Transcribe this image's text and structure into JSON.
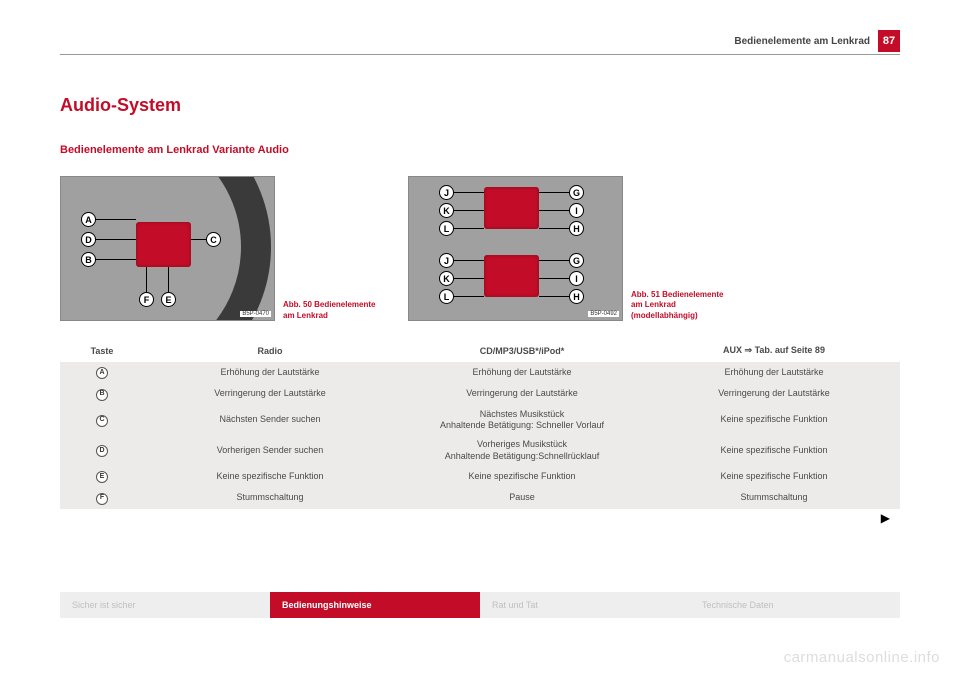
{
  "header": {
    "section_title": "Bedienelemente am Lenkrad",
    "page_number": "87"
  },
  "title": "Audio-System",
  "subtitle": "Bedienelemente am Lenkrad Variante Audio",
  "figures": {
    "left": {
      "code": "B5P-0470",
      "caption": "Abb. 50  Bedienelemente am Lenkrad",
      "bubbles": [
        "A",
        "B",
        "C",
        "D",
        "E",
        "F"
      ]
    },
    "right": {
      "code": "B5P-0492",
      "caption": "Abb. 51  Bedienelemente am Lenkrad (modellabhängig)",
      "bubbles_top": [
        "J",
        "K",
        "L",
        "G",
        "I",
        "H"
      ],
      "bubbles_bot": [
        "J",
        "K",
        "L",
        "G",
        "I",
        "H"
      ]
    }
  },
  "table": {
    "columns": {
      "taste": "Taste",
      "radio": "Radio",
      "cd": "CD/MP3/USB*/iPod*",
      "aux": "AUX ⇒ Tab. auf Seite 89"
    },
    "rows": [
      {
        "key": "A",
        "radio": "Erhöhung der Lautstärke",
        "cd": "Erhöhung der Lautstärke",
        "aux": "Erhöhung der Lautstärke"
      },
      {
        "key": "B",
        "radio": "Verringerung der Lautstärke",
        "cd": "Verringerung der Lautstärke",
        "aux": "Verringerung der Lautstärke"
      },
      {
        "key": "C",
        "radio": "Nächsten Sender suchen",
        "cd": "Nächstes Musikstück\nAnhaltende Betätigung: Schneller Vorlauf",
        "aux": "Keine spezifische Funktion"
      },
      {
        "key": "D",
        "radio": "Vorherigen Sender suchen",
        "cd": "Vorheriges Musikstück\nAnhaltende Betätigung:Schnellrücklauf",
        "aux": "Keine spezifische Funktion"
      },
      {
        "key": "E",
        "radio": "Keine spezifische Funktion",
        "cd": "Keine spezifische Funktion",
        "aux": "Keine spezifische Funktion"
      },
      {
        "key": "F",
        "radio": "Stummschaltung",
        "cd": "Pause",
        "aux": "Stummschaltung"
      }
    ]
  },
  "footer": {
    "tabs": [
      "Sicher ist sicher",
      "Bedienungshinweise",
      "Rat und Tat",
      "Technische Daten"
    ],
    "active_index": 1
  },
  "watermark": "carmanualsonline.info",
  "colors": {
    "accent": "#c30d28",
    "row_bg": "#ecebea",
    "tab_inactive_bg": "#eeeeee",
    "tab_inactive_text": "#bfbfbf"
  }
}
